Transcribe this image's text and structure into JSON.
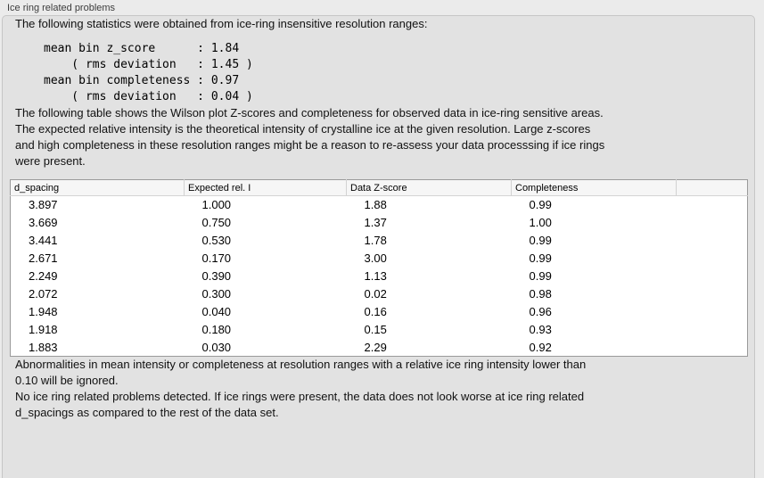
{
  "panel": {
    "title": "Ice ring related problems"
  },
  "intro": "The following statistics were obtained from ice-ring insensitive resolution ranges:",
  "stats": {
    "lines": [
      "mean bin z_score      : 1.84",
      "    ( rms deviation   : 1.45 )",
      "mean bin completeness : 0.97",
      "    ( rms deviation   : 0.04 )"
    ]
  },
  "table_description": [
    "The following table shows the Wilson plot Z-scores and completeness for observed data in ice-ring sensitive areas.",
    "The expected relative intensity is the theoretical intensity of crystalline ice at the given resolution. Large z-scores",
    "and high completeness in these resolution ranges might be a reason to re-assess your data processsing if ice rings",
    "were present."
  ],
  "table": {
    "columns": [
      "d_spacing",
      "Expected rel. I",
      "Data Z-score",
      "Completeness",
      ""
    ],
    "rows": [
      [
        "3.897",
        "1.000",
        "1.88",
        "0.99"
      ],
      [
        "3.669",
        "0.750",
        "1.37",
        "1.00"
      ],
      [
        "3.441",
        "0.530",
        "1.78",
        "0.99"
      ],
      [
        "2.671",
        "0.170",
        "3.00",
        "0.99"
      ],
      [
        "2.249",
        "0.390",
        "1.13",
        "0.99"
      ],
      [
        "2.072",
        "0.300",
        "0.02",
        "0.98"
      ],
      [
        "1.948",
        "0.040",
        "0.16",
        "0.96"
      ],
      [
        "1.918",
        "0.180",
        "0.15",
        "0.93"
      ],
      [
        "1.883",
        "0.030",
        "2.29",
        "0.92"
      ]
    ]
  },
  "ignore_note": [
    "Abnormalities in mean intensity or completeness at resolution ranges with a relative ice ring intensity lower than",
    "0.10 will be ignored."
  ],
  "conclusion": [
    "No ice ring related problems detected. If ice rings were present, the data does not look worse at ice ring related",
    "d_spacings as compared to the rest of the data set."
  ],
  "colors": {
    "outer_background": "#ebebeb",
    "panel_background": "#e2e2e2",
    "panel_border": "#c6c6c6",
    "table_border": "#9a9a9a",
    "table_header_background": "#f6f6f6"
  }
}
